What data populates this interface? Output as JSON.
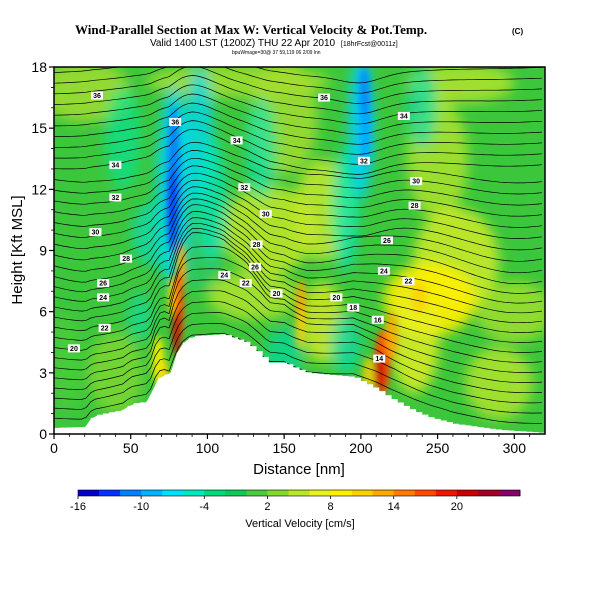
{
  "chart_data": {
    "type": "heatmap",
    "title": "Wind-Parallel Section at Max W: Vertical Velocity & Pot.Temp.",
    "title_mark": "(C)",
    "subtitle": "Valid 1400 LST (1200Z) THU 22 Apr 2010",
    "subtitle_small": "(1200Z)",
    "subtitle_extra": "[18hrFcst@0011z]",
    "credit": "bpuWmage=30@ 37 59,119 06 2/09 lnn",
    "xlabel": "Distance [nm]",
    "ylabel": "Height [Kft MSL]",
    "xlim": [
      0,
      320
    ],
    "ylim": [
      0,
      18
    ],
    "xticks": [
      0,
      50,
      100,
      150,
      200,
      250,
      300
    ],
    "yticks": [
      0,
      3,
      6,
      9,
      12,
      15,
      18
    ],
    "colorbar": {
      "label": "Vertical Velocity [cm/s]",
      "ticks": [
        -16,
        -10,
        -4,
        2,
        8,
        14,
        20
      ],
      "colors": [
        "#0000c8",
        "#0032ff",
        "#0080ff",
        "#00b4ff",
        "#00e0ff",
        "#00e8c0",
        "#00d87a",
        "#10c858",
        "#48cc3a",
        "#80d830",
        "#b8e628",
        "#e8f020",
        "#fff000",
        "#ffd000",
        "#ffa800",
        "#ff7c00",
        "#ff4800",
        "#ee1800",
        "#c80000",
        "#a00028",
        "#88006a"
      ]
    },
    "terrain": [
      [
        0,
        0.3
      ],
      [
        20,
        0.35
      ],
      [
        25,
        0.9
      ],
      [
        45,
        1.2
      ],
      [
        50,
        1.5
      ],
      [
        62,
        1.6
      ],
      [
        65,
        2.4
      ],
      [
        70,
        3.0
      ],
      [
        75,
        2.8
      ],
      [
        80,
        4.0
      ],
      [
        85,
        4.6
      ],
      [
        90,
        4.8
      ],
      [
        110,
        4.9
      ],
      [
        125,
        4.5
      ],
      [
        133,
        4.0
      ],
      [
        140,
        3.5
      ],
      [
        150,
        3.5
      ],
      [
        155,
        3.3
      ],
      [
        165,
        3.0
      ],
      [
        195,
        2.8
      ],
      [
        210,
        2.2
      ],
      [
        218,
        1.8
      ],
      [
        225,
        1.5
      ],
      [
        235,
        1.1
      ],
      [
        245,
        0.8
      ],
      [
        260,
        0.5
      ],
      [
        290,
        0.2
      ],
      [
        320,
        0.05
      ]
    ],
    "updraft_cores": [
      {
        "x": 81,
        "y": 5.5,
        "w_cms": 24
      },
      {
        "x": 161,
        "y": 6.0,
        "w_cms": 10
      },
      {
        "x": 213,
        "y": 3.2,
        "w_cms": 20
      }
    ],
    "downdraft_cores": [
      {
        "x": 77,
        "y": 12.0,
        "w_cms": -14
      },
      {
        "x": 203,
        "y": 15.5,
        "w_cms": -8
      }
    ],
    "isentrope_labels": [
      {
        "x": 28,
        "y": 16.6,
        "label": "36"
      },
      {
        "x": 176,
        "y": 16.5,
        "label": "36"
      },
      {
        "x": 79,
        "y": 15.3,
        "label": "36"
      },
      {
        "x": 228,
        "y": 15.6,
        "label": "34"
      },
      {
        "x": 119,
        "y": 14.4,
        "label": "34"
      },
      {
        "x": 40,
        "y": 13.2,
        "label": "34"
      },
      {
        "x": 202,
        "y": 13.4,
        "label": "32"
      },
      {
        "x": 236,
        "y": 12.4,
        "label": "30"
      },
      {
        "x": 124,
        "y": 12.1,
        "label": "32"
      },
      {
        "x": 40,
        "y": 11.6,
        "label": "32"
      },
      {
        "x": 235,
        "y": 11.2,
        "label": "28"
      },
      {
        "x": 138,
        "y": 10.8,
        "label": "30"
      },
      {
        "x": 27,
        "y": 9.9,
        "label": "30"
      },
      {
        "x": 132,
        "y": 9.3,
        "label": "28"
      },
      {
        "x": 217,
        "y": 9.5,
        "label": "26"
      },
      {
        "x": 47,
        "y": 8.6,
        "label": "28"
      },
      {
        "x": 131,
        "y": 8.2,
        "label": "26"
      },
      {
        "x": 215,
        "y": 8.0,
        "label": "24"
      },
      {
        "x": 111,
        "y": 7.8,
        "label": "24"
      },
      {
        "x": 231,
        "y": 7.5,
        "label": "22"
      },
      {
        "x": 32,
        "y": 7.4,
        "label": "26"
      },
      {
        "x": 125,
        "y": 7.4,
        "label": "22"
      },
      {
        "x": 32,
        "y": 6.7,
        "label": "24"
      },
      {
        "x": 145,
        "y": 6.9,
        "label": "20"
      },
      {
        "x": 184,
        "y": 6.7,
        "label": "20"
      },
      {
        "x": 195,
        "y": 6.2,
        "label": "18"
      },
      {
        "x": 211,
        "y": 5.6,
        "label": "16"
      },
      {
        "x": 33,
        "y": 5.2,
        "label": "22"
      },
      {
        "x": 13,
        "y": 4.2,
        "label": "20"
      },
      {
        "x": 212,
        "y": 3.7,
        "label": "14"
      }
    ]
  }
}
